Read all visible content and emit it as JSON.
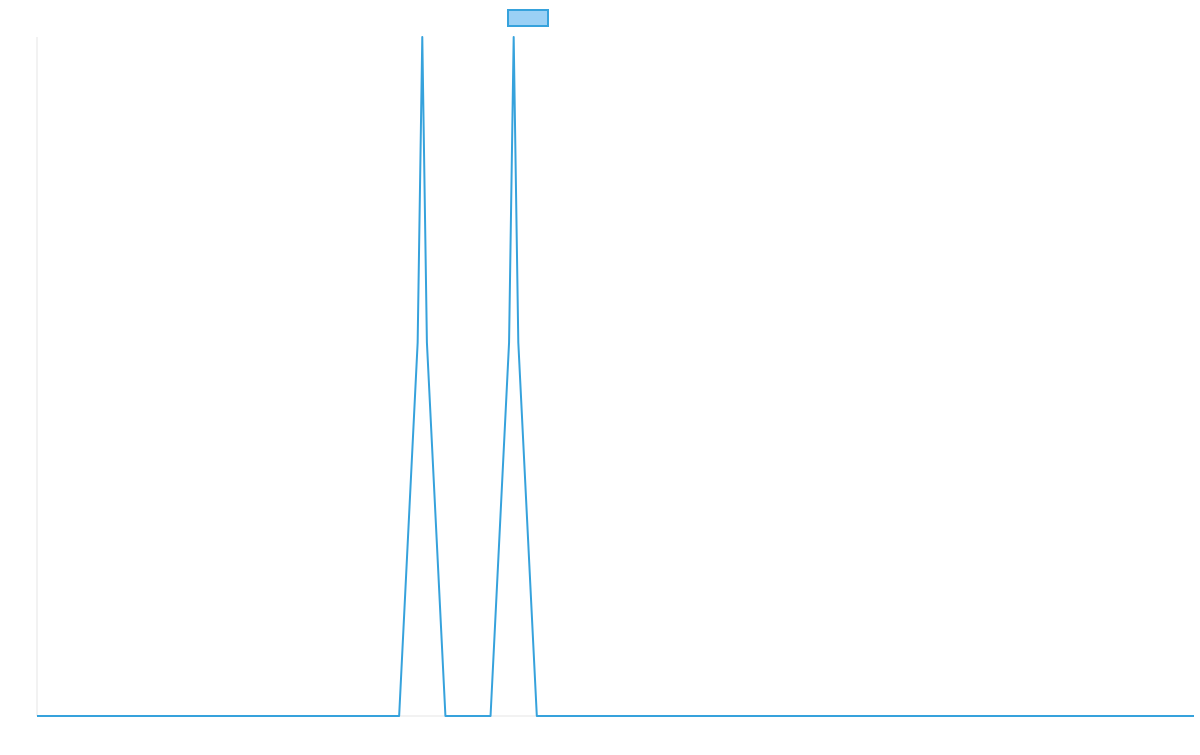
{
  "chart_data": {
    "type": "line",
    "title": "",
    "xlabel": "",
    "ylabel": "",
    "x_range": [
      0,
      100
    ],
    "ylim": [
      0,
      1
    ],
    "grid": false,
    "legend_position": "top-center",
    "series": [
      {
        "legend_label": "",
        "color": "#36a2dc",
        "fill_color": "#9ad0f5",
        "points": [
          [
            0,
            0
          ],
          [
            31.3,
            0
          ],
          [
            32.9,
            0.55
          ],
          [
            33.3,
            1
          ],
          [
            33.7,
            0.55
          ],
          [
            35.3,
            0
          ],
          [
            39.2,
            0
          ],
          [
            40.8,
            0.55
          ],
          [
            41.2,
            1
          ],
          [
            41.6,
            0.55
          ],
          [
            43.2,
            0
          ],
          [
            100,
            0
          ]
        ]
      }
    ]
  }
}
